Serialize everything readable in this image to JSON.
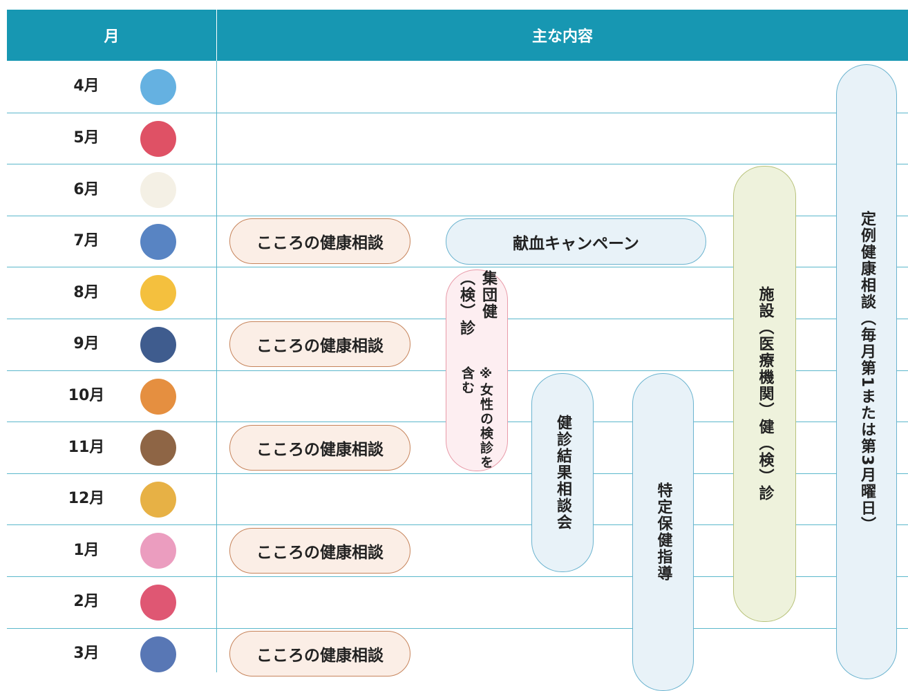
{
  "header": {
    "month": "月",
    "content": "主な内容"
  },
  "months": [
    "4月",
    "5月",
    "6月",
    "7月",
    "8月",
    "9月",
    "10月",
    "11月",
    "12月",
    "1月",
    "2月",
    "3月"
  ],
  "events": {
    "kokoro": [
      "こころの健康相談",
      "こころの健康相談",
      "こころの健康相談",
      "こころの健康相談",
      "こころの健康相談"
    ],
    "blood": "献血キャンペーン",
    "group_checkup": {
      "title": "集団健（検）診",
      "note": "※女性の検診を含む"
    },
    "results": "健診結果相談会",
    "guidance": "特定保健指導",
    "facility": "施設（医療機関）健（検）診",
    "regular": "定例健康相談（毎月第1または第3月曜日）"
  }
}
